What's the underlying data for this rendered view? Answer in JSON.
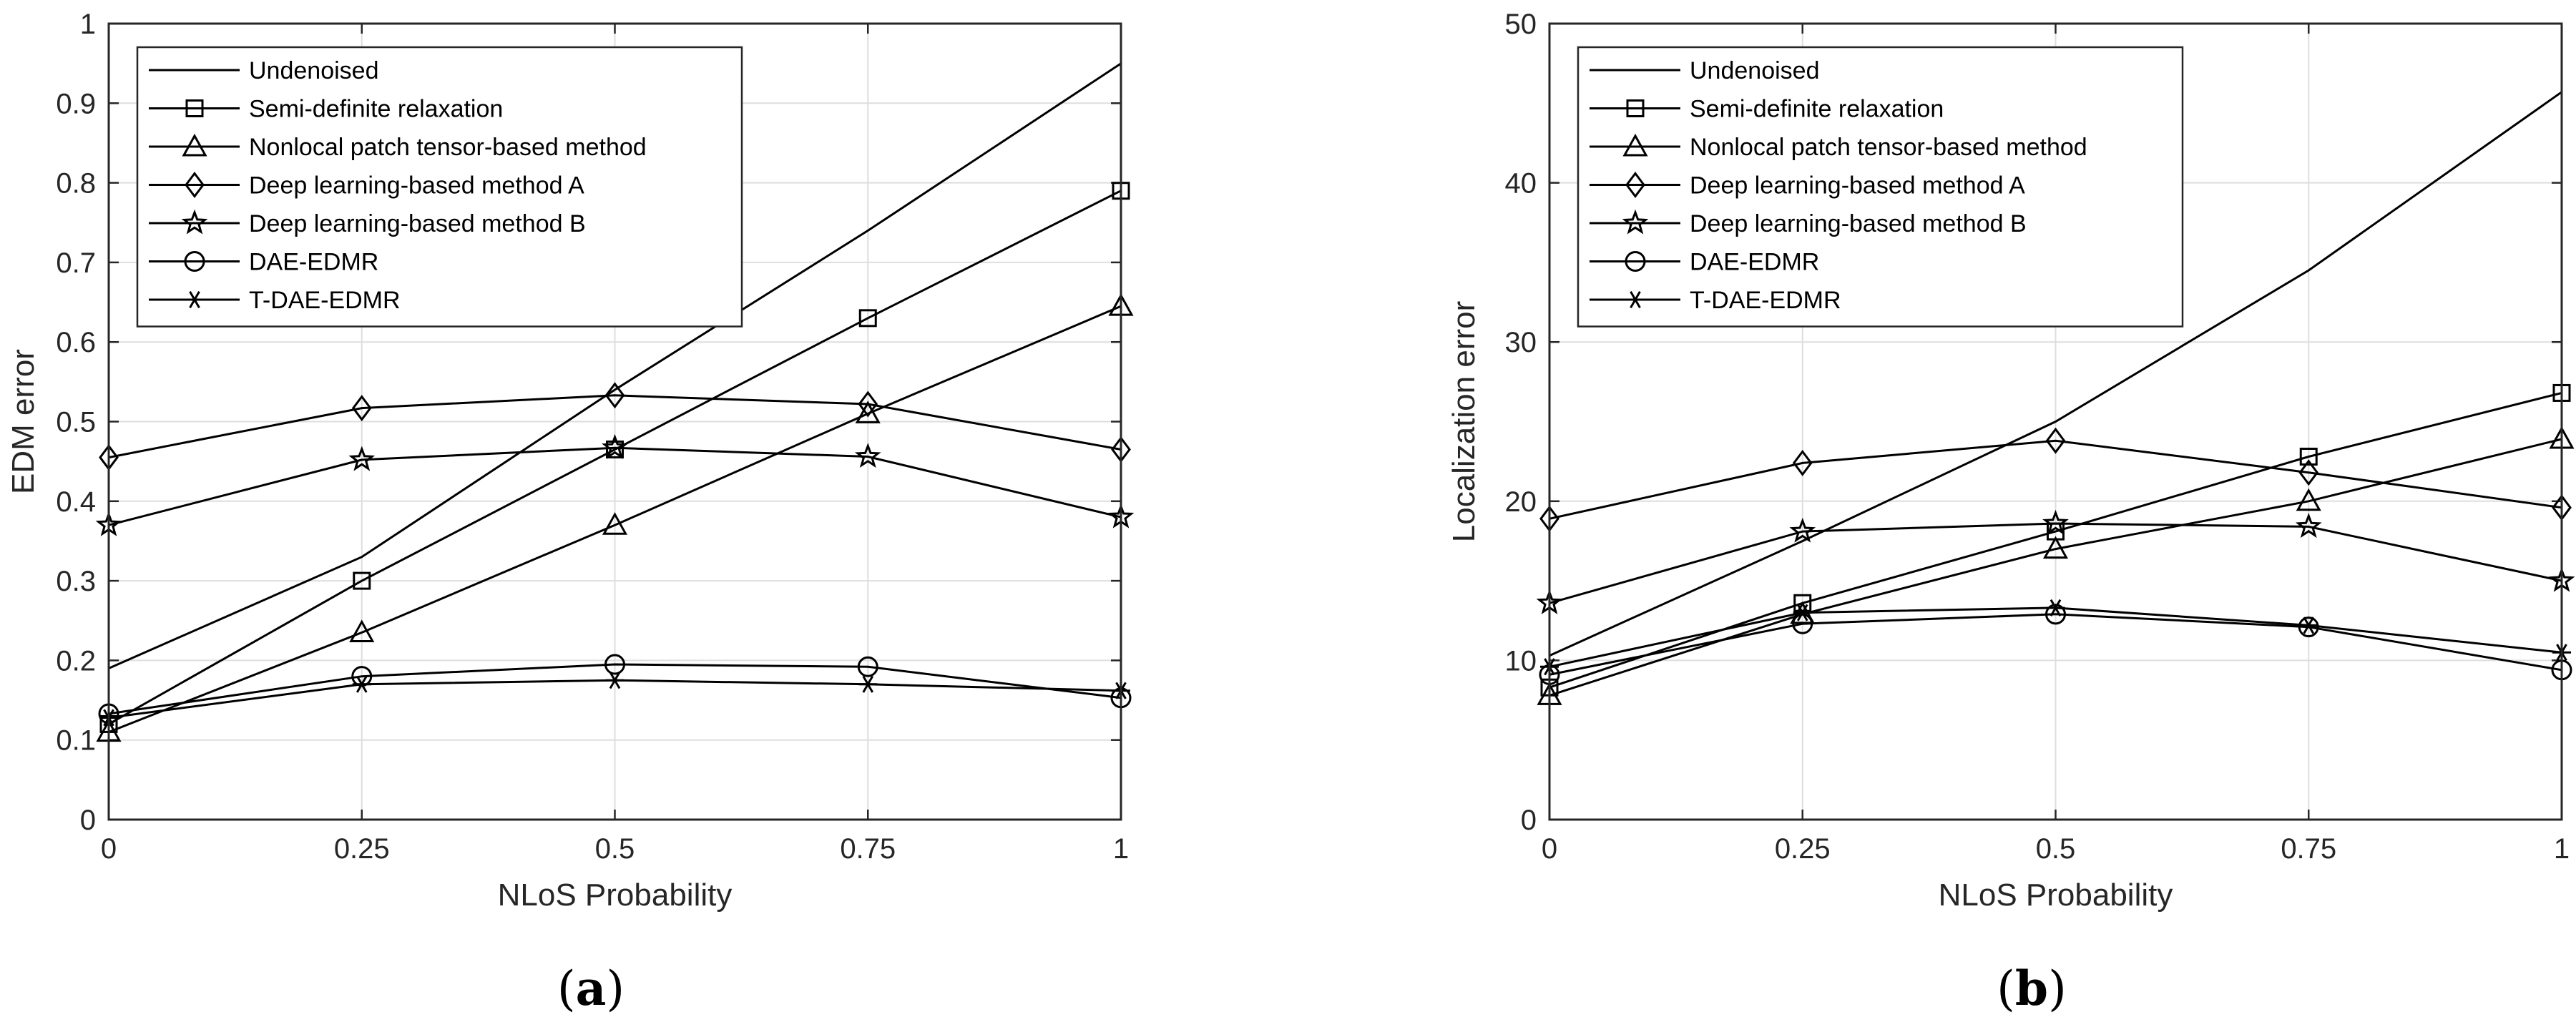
{
  "chart_data": [
    {
      "type": "line",
      "panel": "a",
      "caption": "(a)",
      "caption_letter": "a",
      "xlabel": "NLoS Probability",
      "ylabel": "EDM error",
      "x": [
        0,
        0.25,
        0.5,
        0.75,
        1
      ],
      "xticks": [
        0,
        0.25,
        0.5,
        0.75,
        1
      ],
      "xtick_labels": [
        "0",
        "0.25",
        "0.5",
        "0.75",
        "1"
      ],
      "yticks": [
        0,
        0.1,
        0.2,
        0.3,
        0.4,
        0.5,
        0.6,
        0.7,
        0.8,
        0.9,
        1
      ],
      "ytick_labels": [
        "0",
        "0.1",
        "0.2",
        "0.3",
        "0.4",
        "0.5",
        "0.6",
        "0.7",
        "0.8",
        "0.9",
        "1"
      ],
      "xlim": [
        0,
        1
      ],
      "ylim": [
        0,
        1
      ],
      "grid": true,
      "legend_position": "top-left",
      "series": [
        {
          "name": "Undenoised",
          "marker": "none",
          "values": [
            0.19,
            0.33,
            0.54,
            0.74,
            0.95
          ]
        },
        {
          "name": "Semi-definite relaxation",
          "marker": "square",
          "values": [
            0.12,
            0.3,
            0.465,
            0.63,
            0.79
          ]
        },
        {
          "name": "Nonlocal patch tensor-based method",
          "marker": "triangle",
          "values": [
            0.11,
            0.235,
            0.37,
            0.51,
            0.645
          ]
        },
        {
          "name": "Deep learning-based method A",
          "marker": "diamond",
          "values": [
            0.455,
            0.517,
            0.533,
            0.522,
            0.465
          ]
        },
        {
          "name": "Deep learning-based method B",
          "marker": "star",
          "values": [
            0.37,
            0.452,
            0.467,
            0.456,
            0.38
          ]
        },
        {
          "name": "DAE-EDMR",
          "marker": "circle",
          "values": [
            0.133,
            0.18,
            0.195,
            0.192,
            0.153
          ]
        },
        {
          "name": "T-DAE-EDMR",
          "marker": "asterisk",
          "values": [
            0.128,
            0.17,
            0.175,
            0.17,
            0.162
          ]
        }
      ]
    },
    {
      "type": "line",
      "panel": "b",
      "caption": "(b)",
      "caption_letter": "b",
      "xlabel": "NLoS Probability",
      "ylabel": "Localization error",
      "x": [
        0,
        0.25,
        0.5,
        0.75,
        1
      ],
      "xticks": [
        0,
        0.25,
        0.5,
        0.75,
        1
      ],
      "xtick_labels": [
        "0",
        "0.25",
        "0.5",
        "0.75",
        "1"
      ],
      "yticks": [
        0,
        10,
        20,
        30,
        40,
        50
      ],
      "ytick_labels": [
        "0",
        "10",
        "20",
        "30",
        "40",
        "50"
      ],
      "xlim": [
        0,
        1
      ],
      "ylim": [
        0,
        50
      ],
      "grid": true,
      "legend_position": "top-left",
      "series": [
        {
          "name": "Undenoised",
          "marker": "none",
          "values": [
            10.3,
            17.5,
            25.0,
            34.5,
            45.7
          ]
        },
        {
          "name": "Semi-definite relaxation",
          "marker": "square",
          "values": [
            8.3,
            13.6,
            18.1,
            22.8,
            26.8
          ]
        },
        {
          "name": "Nonlocal patch tensor-based method",
          "marker": "triangle",
          "values": [
            7.8,
            12.9,
            17.0,
            20.0,
            23.9
          ]
        },
        {
          "name": "Deep learning-based method A",
          "marker": "diamond",
          "values": [
            18.9,
            22.4,
            23.8,
            21.8,
            19.6
          ]
        },
        {
          "name": "Deep learning-based method B",
          "marker": "star",
          "values": [
            13.6,
            18.1,
            18.6,
            18.4,
            15.0
          ]
        },
        {
          "name": "DAE-EDMR",
          "marker": "circle",
          "values": [
            9.1,
            12.3,
            12.9,
            12.1,
            9.4
          ]
        },
        {
          "name": "T-DAE-EDMR",
          "marker": "asterisk",
          "values": [
            9.6,
            13.0,
            13.3,
            12.2,
            10.5
          ]
        }
      ]
    }
  ]
}
